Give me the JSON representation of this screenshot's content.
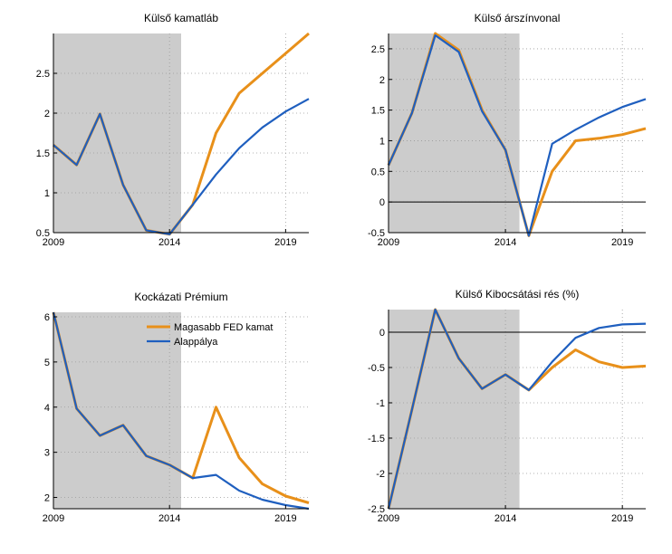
{
  "chart_data": [
    {
      "type": "line",
      "title": "Külső kamatláb",
      "x": [
        2009,
        2010,
        2011,
        2012,
        2013,
        2014,
        2015,
        2016,
        2017,
        2018,
        2019,
        2020
      ],
      "xlim": [
        2009,
        2020
      ],
      "ylim": [
        0.5,
        3.0
      ],
      "xticks": [
        "2009",
        "2014",
        "2019"
      ],
      "yticks": [
        "0.5",
        "1",
        "1.5",
        "2",
        "2.5"
      ],
      "shaded_region": [
        2009,
        2014.5
      ],
      "zero_line": false,
      "series": [
        {
          "name": "Magasabb FED kamat",
          "color": "#e8901a",
          "values": [
            1.6,
            1.35,
            1.99,
            1.1,
            0.53,
            0.48,
            0.85,
            1.75,
            2.25,
            2.5,
            2.75,
            3.0
          ]
        },
        {
          "name": "Alappálya",
          "color": "#1f5fbf",
          "values": [
            1.6,
            1.35,
            1.99,
            1.1,
            0.53,
            0.48,
            0.85,
            1.23,
            1.56,
            1.82,
            2.02,
            2.18
          ]
        }
      ]
    },
    {
      "type": "line",
      "title": "Külső árszínvonal",
      "x": [
        2009,
        2010,
        2011,
        2012,
        2013,
        2014,
        2015,
        2016,
        2017,
        2018,
        2019,
        2020
      ],
      "xlim": [
        2009,
        2020
      ],
      "ylim": [
        -0.5,
        2.75
      ],
      "xticks": [
        "2009",
        "2014",
        "2019"
      ],
      "yticks": [
        "-0.5",
        "0",
        "0.5",
        "1",
        "1.5",
        "2",
        "2.5"
      ],
      "shaded_region": [
        2009,
        2014.6
      ],
      "zero_line": true,
      "series": [
        {
          "name": "Magasabb FED kamat",
          "color": "#e8901a",
          "values": [
            0.6,
            1.45,
            2.75,
            2.48,
            1.5,
            0.85,
            -0.55,
            0.5,
            1.0,
            1.04,
            1.1,
            1.2
          ]
        },
        {
          "name": "Alappálya",
          "color": "#1f5fbf",
          "values": [
            0.6,
            1.45,
            2.72,
            2.45,
            1.48,
            0.85,
            -0.55,
            0.95,
            1.18,
            1.38,
            1.55,
            1.68
          ]
        }
      ]
    },
    {
      "type": "line",
      "title": "Kockázati Prémium",
      "x": [
        2009,
        2010,
        2011,
        2012,
        2013,
        2014,
        2015,
        2016,
        2017,
        2018,
        2019,
        2020
      ],
      "xlim": [
        2009,
        2020
      ],
      "ylim": [
        1.75,
        6.1
      ],
      "xticks": [
        "2009",
        "2014",
        "2019"
      ],
      "yticks": [
        "2",
        "3",
        "4",
        "5",
        "6"
      ],
      "shaded_region": [
        2009,
        2014.5
      ],
      "zero_line": false,
      "legend": "top-right",
      "series": [
        {
          "name": "Magasabb FED kamat",
          "color": "#e8901a",
          "values": [
            6.1,
            3.97,
            3.37,
            3.6,
            2.92,
            2.72,
            2.43,
            4.0,
            2.88,
            2.3,
            2.03,
            1.88
          ]
        },
        {
          "name": "Alappálya",
          "color": "#1f5fbf",
          "values": [
            6.1,
            3.97,
            3.37,
            3.6,
            2.92,
            2.72,
            2.43,
            2.5,
            2.15,
            1.95,
            1.83,
            1.75
          ]
        }
      ]
    },
    {
      "type": "line",
      "title": "Külső Kibocsátási rés (%)",
      "x": [
        2009,
        2010,
        2011,
        2012,
        2013,
        2014,
        2015,
        2016,
        2017,
        2018,
        2019,
        2020
      ],
      "xlim": [
        2009,
        2020
      ],
      "ylim": [
        -2.5,
        0.32
      ],
      "xticks": [
        "2009",
        "2014",
        "2019"
      ],
      "yticks": [
        "-2.5",
        "-2",
        "-1.5",
        "-1",
        "-0.5",
        "0"
      ],
      "shaded_region": [
        2009,
        2014.6
      ],
      "zero_line": true,
      "series": [
        {
          "name": "Magasabb FED kamat",
          "color": "#e8901a",
          "values": [
            -2.5,
            -1.1,
            0.32,
            -0.37,
            -0.8,
            -0.6,
            -0.82,
            -0.5,
            -0.25,
            -0.42,
            -0.5,
            -0.48
          ]
        },
        {
          "name": "Alappálya",
          "color": "#1f5fbf",
          "values": [
            -2.5,
            -1.1,
            0.32,
            -0.37,
            -0.8,
            -0.6,
            -0.82,
            -0.42,
            -0.08,
            0.06,
            0.11,
            0.12
          ]
        }
      ]
    }
  ]
}
